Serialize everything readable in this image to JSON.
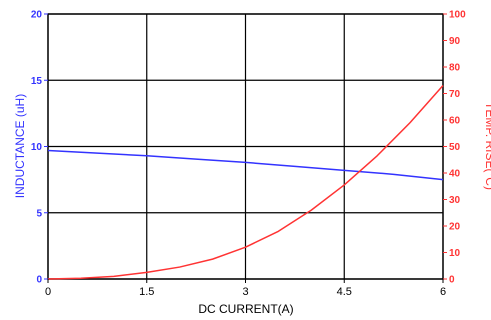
{
  "chart_data": {
    "type": "line",
    "title": "",
    "xlabel": "DC CURRENT(A)",
    "ylabel_left": "INDUCTANCE (uH)",
    "ylabel_right": "TEMP. RISE(°C)",
    "xlim": [
      0,
      6
    ],
    "ylim_left": [
      0,
      20
    ],
    "ylim_right": [
      0,
      100
    ],
    "x_ticks": [
      "0",
      "1.5",
      "3",
      "4.5",
      "6"
    ],
    "y_left_ticks": [
      "0",
      "5",
      "10",
      "15",
      "20"
    ],
    "y_right_ticks": [
      "0",
      "10",
      "20",
      "30",
      "40",
      "50",
      "60",
      "70",
      "80",
      "90",
      "100"
    ],
    "grid": true,
    "series": [
      {
        "axis": "left",
        "color": "#3333ff",
        "x": [
          0,
          0.75,
          1.5,
          2.25,
          3,
          3.75,
          4.5,
          5.25,
          6
        ],
        "y": [
          9.7,
          9.5,
          9.3,
          9.05,
          8.8,
          8.5,
          8.2,
          7.9,
          7.5
        ]
      },
      {
        "axis": "right",
        "color": "#ff3333",
        "x": [
          0,
          0.5,
          1,
          1.5,
          2,
          2.5,
          3,
          3.5,
          4,
          4.5,
          5,
          5.5,
          6
        ],
        "y": [
          0,
          0.3,
          1,
          2.5,
          4.5,
          7.5,
          12,
          18,
          26,
          35.5,
          46.5,
          59,
          73
        ]
      }
    ],
    "colors": {
      "left_axis": "#3333ff",
      "right_axis": "#ff3333",
      "grid": "#000000",
      "x_axis_text": "#000000"
    }
  }
}
